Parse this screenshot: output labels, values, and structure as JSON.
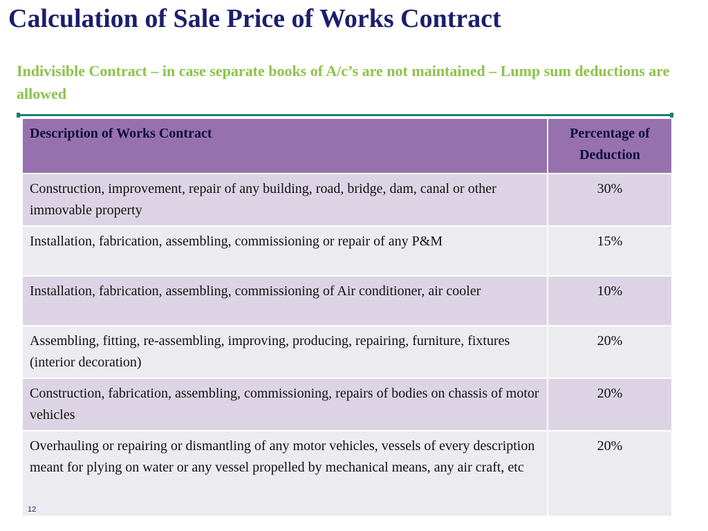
{
  "slide": {
    "title": "Calculation of Sale Price of Works Contract",
    "subtitle": "Indivisible Contract – in case separate books of A/c’s are not maintained – Lump sum deductions are allowed",
    "page_number": "12"
  },
  "table": {
    "headers": {
      "description": "Description of Works Contract",
      "percentage": "Percentage of Deduction"
    },
    "rows": [
      {
        "description": "Construction, improvement, repair of any building, road, bridge, dam, canal or other immovable property",
        "percentage": "30%"
      },
      {
        "description": "Installation, fabrication, assembling, commissioning or repair of any P&M",
        "percentage": "15%"
      },
      {
        "description": "Installation, fabrication, assembling, commissioning of Air conditioner, air cooler",
        "percentage": "10%"
      },
      {
        "description": "Assembling, fitting, re-assembling, improving, producing, repairing, furniture, fixtures (interior decoration)",
        "percentage": "20%"
      },
      {
        "description": "Construction, fabrication, assembling, commissioning, repairs of bodies on chassis of motor vehicles",
        "percentage": "20%"
      },
      {
        "description": "Overhauling or repairing or dismantling of any motor vehicles, vessels of every description meant for plying on water or any vessel propelled by mechanical means, any air craft, etc",
        "percentage": "20%"
      }
    ]
  },
  "colors": {
    "title": "#1b1f6b",
    "subtitle": "#8bc34a",
    "rule": "#1e7d73",
    "header_bg": "#9771ad",
    "row_odd_bg": "#dcd4e4",
    "row_even_bg": "#ecebef"
  }
}
